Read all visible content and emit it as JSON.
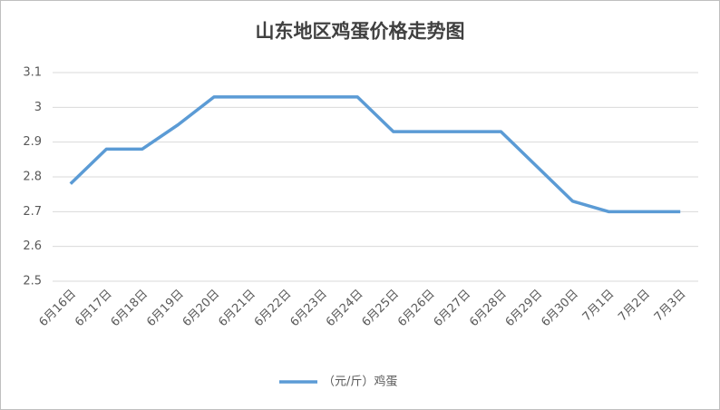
{
  "chart_data": {
    "type": "line",
    "title": "山东地区鸡蛋价格走势图",
    "categories": [
      "6月16日",
      "6月17日",
      "6月18日",
      "6月19日",
      "6月20日",
      "6月21日",
      "6月22日",
      "6月23日",
      "6月24日",
      "6月25日",
      "6月26日",
      "6月27日",
      "6月28日",
      "6月29日",
      "6月30日",
      "7月1日",
      "7月2日",
      "7月3日"
    ],
    "series": [
      {
        "name": "（元/斤）鸡蛋",
        "color": "#5b9bd5",
        "values": [
          2.78,
          2.88,
          2.88,
          2.95,
          3.03,
          3.03,
          3.03,
          3.03,
          3.03,
          2.93,
          2.93,
          2.93,
          2.93,
          2.83,
          2.73,
          2.7,
          2.7,
          2.7
        ]
      }
    ],
    "ylim": [
      2.5,
      3.1
    ],
    "yticks": [
      2.5,
      2.6,
      2.7,
      2.8,
      2.9,
      3,
      3.1
    ],
    "grid": true,
    "legend": "bottom"
  }
}
